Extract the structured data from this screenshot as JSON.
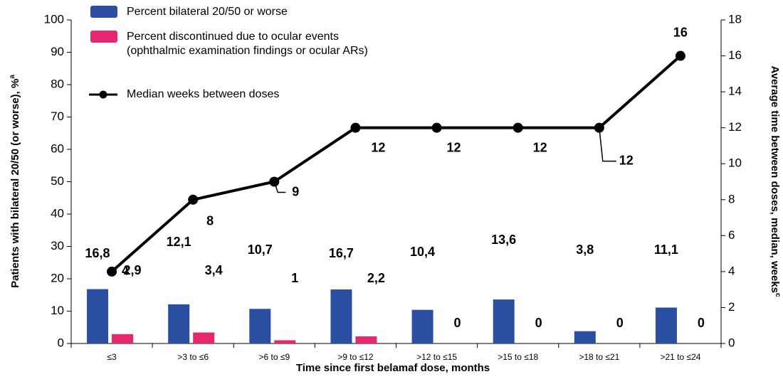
{
  "chart_data": {
    "type": "bar_line",
    "xlabel": "Time since first belamaf dose, months",
    "ylabel": "Patients with bilateral 20/50 (or worse), %",
    "ylabel_superscript": "a",
    "y2label": "Average time between doses, median, weeks",
    "y2label_superscript": "c",
    "categories": [
      "≤3",
      ">3 to ≤6",
      ">6 to ≤9",
      ">9 to ≤12",
      ">12 to ≤15",
      ">15 to ≤18",
      ">18 to ≤21",
      ">21 to ≤24"
    ],
    "series": [
      {
        "name": "Percent bilateral 20/50 or worse",
        "type": "bar",
        "color": "#2a4ea0",
        "values": [
          16.8,
          12.1,
          10.7,
          16.7,
          10.4,
          13.6,
          3.8,
          11.1
        ],
        "value_labels": [
          "16,8",
          "12,1",
          "10,7",
          "16,7",
          "10,4",
          "13,6",
          "3,8",
          "11,1"
        ]
      },
      {
        "name": "Percent discontinued due to ocular events (ophthalmic examination findings or ocular ARs)",
        "type": "bar",
        "color": "#e8266e",
        "values": [
          2.9,
          3.4,
          1,
          2.2,
          0,
          0,
          0,
          0
        ],
        "value_labels": [
          "2,9",
          "3,4",
          "1",
          "2,2",
          "0",
          "0",
          "0",
          "0"
        ]
      },
      {
        "name": "Median weeks between doses",
        "type": "line",
        "axis": "y2",
        "color": "#000000",
        "values": [
          4,
          8,
          9,
          12,
          12,
          12,
          12,
          16
        ]
      }
    ],
    "ylim": [
      0,
      100
    ],
    "yticks": [
      0,
      10,
      20,
      30,
      40,
      50,
      60,
      70,
      80,
      90,
      100
    ],
    "y2lim": [
      0,
      18
    ],
    "y2ticks": [
      0,
      2,
      4,
      6,
      8,
      10,
      12,
      14,
      16,
      18
    ]
  }
}
